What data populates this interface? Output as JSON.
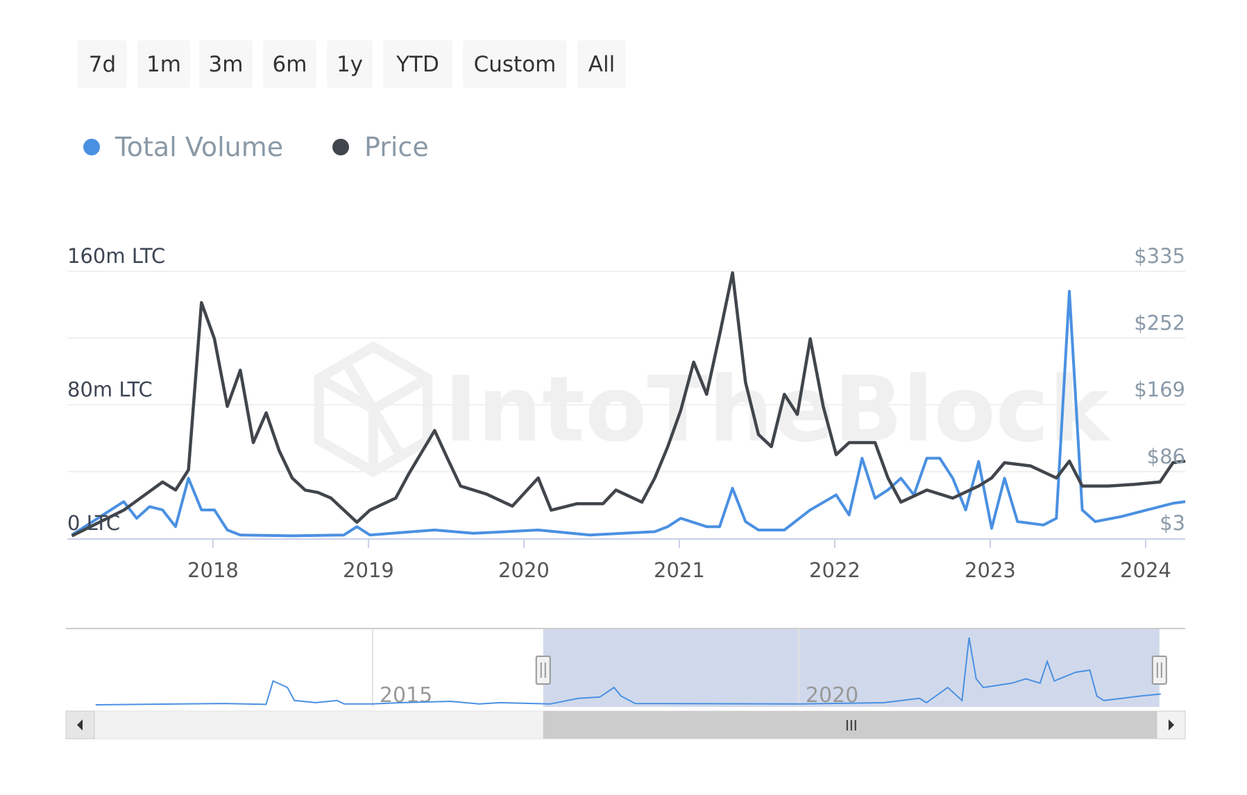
{
  "range_buttons": [
    "7d",
    "1m",
    "3m",
    "6m",
    "1y",
    "YTD",
    "Custom",
    "All"
  ],
  "legend": [
    {
      "label": "Total Volume",
      "color": "#4a90e2"
    },
    {
      "label": "Price",
      "color": "#41464c"
    }
  ],
  "watermark": "IntoTheBlock",
  "navigator": {
    "labels": [
      "2015",
      "2020"
    ],
    "selected_range": [
      "2017-02",
      "2024-04"
    ],
    "series": [
      [
        "2011-10",
        0
      ],
      [
        "2013-04",
        3
      ],
      [
        "2013-10",
        1
      ],
      [
        "2013-11",
        55
      ],
      [
        "2014-01",
        40
      ],
      [
        "2014-02",
        10
      ],
      [
        "2014-05",
        5
      ],
      [
        "2014-08",
        10
      ],
      [
        "2014-09",
        2
      ],
      [
        "2015-01",
        2
      ],
      [
        "2015-05",
        5
      ],
      [
        "2015-12",
        8
      ],
      [
        "2016-04",
        2
      ],
      [
        "2016-07",
        5
      ],
      [
        "2017-02",
        2
      ],
      [
        "2017-06",
        15
      ],
      [
        "2017-09",
        18
      ],
      [
        "2017-11",
        40
      ],
      [
        "2017-12",
        20
      ],
      [
        "2018-02",
        3
      ],
      [
        "2020-01",
        2
      ],
      [
        "2021-01",
        5
      ],
      [
        "2021-06",
        15
      ],
      [
        "2021-07",
        5
      ],
      [
        "2021-10",
        40
      ],
      [
        "2021-12",
        10
      ],
      [
        "2022-01",
        155
      ],
      [
        "2022-02",
        60
      ],
      [
        "2022-03",
        40
      ],
      [
        "2022-07",
        50
      ],
      [
        "2022-09",
        60
      ],
      [
        "2022-11",
        50
      ],
      [
        "2022-12",
        100
      ],
      [
        "2023-01",
        55
      ],
      [
        "2023-04",
        75
      ],
      [
        "2023-06",
        80
      ],
      [
        "2023-07",
        20
      ],
      [
        "2023-08",
        10
      ],
      [
        "2024-01",
        20
      ],
      [
        "2024-04",
        25
      ]
    ]
  },
  "scrollbar": {
    "grip": "III"
  },
  "chart_data": {
    "type": "line",
    "title": "",
    "left_axis": {
      "ticks": [
        "0 LTC",
        "80m LTC",
        "160m LTC"
      ],
      "range": [
        0,
        160
      ],
      "unit": "m LTC"
    },
    "right_axis": {
      "ticks": [
        "$3",
        "$86",
        "$169",
        "$252",
        "$335"
      ],
      "range": [
        3,
        335
      ]
    },
    "x_ticks": [
      "2018",
      "2019",
      "2020",
      "2021",
      "2022",
      "2023",
      "2024"
    ],
    "x_range": [
      "2017-02",
      "2024-04"
    ],
    "grid": true,
    "legend_position": "top-left",
    "series": [
      {
        "name": "Total Volume",
        "axis": "left",
        "color": "#4a90e2",
        "points": [
          [
            "2017-02",
            2
          ],
          [
            "2017-05",
            17
          ],
          [
            "2017-06",
            22
          ],
          [
            "2017-07",
            12
          ],
          [
            "2017-08",
            19
          ],
          [
            "2017-09",
            17
          ],
          [
            "2017-10",
            7
          ],
          [
            "2017-11",
            36
          ],
          [
            "2017-12",
            17
          ],
          [
            "2018-01",
            17
          ],
          [
            "2018-02",
            5
          ],
          [
            "2018-03",
            2
          ],
          [
            "2018-07",
            1.5
          ],
          [
            "2018-11",
            2
          ],
          [
            "2018-12",
            7
          ],
          [
            "2019-01",
            2
          ],
          [
            "2019-06",
            5
          ],
          [
            "2019-09",
            3
          ],
          [
            "2020-02",
            5
          ],
          [
            "2020-06",
            2
          ],
          [
            "2020-11",
            4
          ],
          [
            "2020-12",
            7
          ],
          [
            "2021-01",
            12
          ],
          [
            "2021-03",
            7
          ],
          [
            "2021-04",
            7
          ],
          [
            "2021-05",
            30
          ],
          [
            "2021-06",
            10
          ],
          [
            "2021-07",
            5
          ],
          [
            "2021-09",
            5
          ],
          [
            "2021-11",
            17
          ],
          [
            "2022-01",
            26
          ],
          [
            "2022-02",
            14
          ],
          [
            "2022-03",
            48
          ],
          [
            "2022-04",
            24
          ],
          [
            "2022-05",
            29
          ],
          [
            "2022-06",
            36
          ],
          [
            "2022-07",
            26
          ],
          [
            "2022-08",
            48
          ],
          [
            "2022-09",
            48
          ],
          [
            "2022-10",
            36
          ],
          [
            "2022-11",
            17
          ],
          [
            "2022-12",
            46
          ],
          [
            "2023-01",
            6
          ],
          [
            "2023-02",
            36
          ],
          [
            "2023-03",
            10
          ],
          [
            "2023-05",
            8
          ],
          [
            "2023-06",
            12
          ],
          [
            "2023-07",
            148
          ],
          [
            "2023-08",
            17
          ],
          [
            "2023-09",
            10
          ],
          [
            "2023-11",
            13
          ],
          [
            "2024-01",
            17
          ],
          [
            "2024-03",
            21
          ],
          [
            "2024-04",
            22
          ]
        ]
      },
      {
        "name": "Price",
        "axis": "right",
        "color": "#41464c",
        "points": [
          [
            "2017-02",
            6
          ],
          [
            "2017-06",
            38
          ],
          [
            "2017-09",
            73
          ],
          [
            "2017-10",
            63
          ],
          [
            "2017-11",
            88
          ],
          [
            "2017-12",
            296
          ],
          [
            "2018-01",
            251
          ],
          [
            "2018-02",
            167
          ],
          [
            "2018-03",
            212
          ],
          [
            "2018-04",
            122
          ],
          [
            "2018-05",
            159
          ],
          [
            "2018-06",
            112
          ],
          [
            "2018-07",
            78
          ],
          [
            "2018-08",
            63
          ],
          [
            "2018-09",
            60
          ],
          [
            "2018-10",
            53
          ],
          [
            "2018-12",
            23
          ],
          [
            "2019-01",
            38
          ],
          [
            "2019-03",
            53
          ],
          [
            "2019-04",
            83
          ],
          [
            "2019-06",
            137
          ],
          [
            "2019-07",
            102
          ],
          [
            "2019-08",
            68
          ],
          [
            "2019-10",
            58
          ],
          [
            "2019-12",
            43
          ],
          [
            "2020-02",
            78
          ],
          [
            "2020-03",
            38
          ],
          [
            "2020-05",
            46
          ],
          [
            "2020-07",
            46
          ],
          [
            "2020-08",
            63
          ],
          [
            "2020-10",
            48
          ],
          [
            "2020-11",
            78
          ],
          [
            "2020-12",
            117
          ],
          [
            "2021-01",
            162
          ],
          [
            "2021-02",
            222
          ],
          [
            "2021-03",
            182
          ],
          [
            "2021-04",
            256
          ],
          [
            "2021-05",
            333
          ],
          [
            "2021-06",
            197
          ],
          [
            "2021-07",
            132
          ],
          [
            "2021-08",
            117
          ],
          [
            "2021-09",
            182
          ],
          [
            "2021-10",
            157
          ],
          [
            "2021-11",
            251
          ],
          [
            "2021-12",
            167
          ],
          [
            "2022-01",
            107
          ],
          [
            "2022-02",
            122
          ],
          [
            "2022-04",
            122
          ],
          [
            "2022-05",
            78
          ],
          [
            "2022-06",
            48
          ],
          [
            "2022-08",
            63
          ],
          [
            "2022-10",
            53
          ],
          [
            "2022-12",
            68
          ],
          [
            "2023-01",
            78
          ],
          [
            "2023-02",
            97
          ],
          [
            "2023-04",
            93
          ],
          [
            "2023-06",
            78
          ],
          [
            "2023-07",
            99
          ],
          [
            "2023-08",
            68
          ],
          [
            "2023-10",
            68
          ],
          [
            "2023-12",
            70
          ],
          [
            "2024-02",
            73
          ],
          [
            "2024-03",
            97
          ],
          [
            "2024-04",
            99
          ]
        ]
      }
    ]
  }
}
